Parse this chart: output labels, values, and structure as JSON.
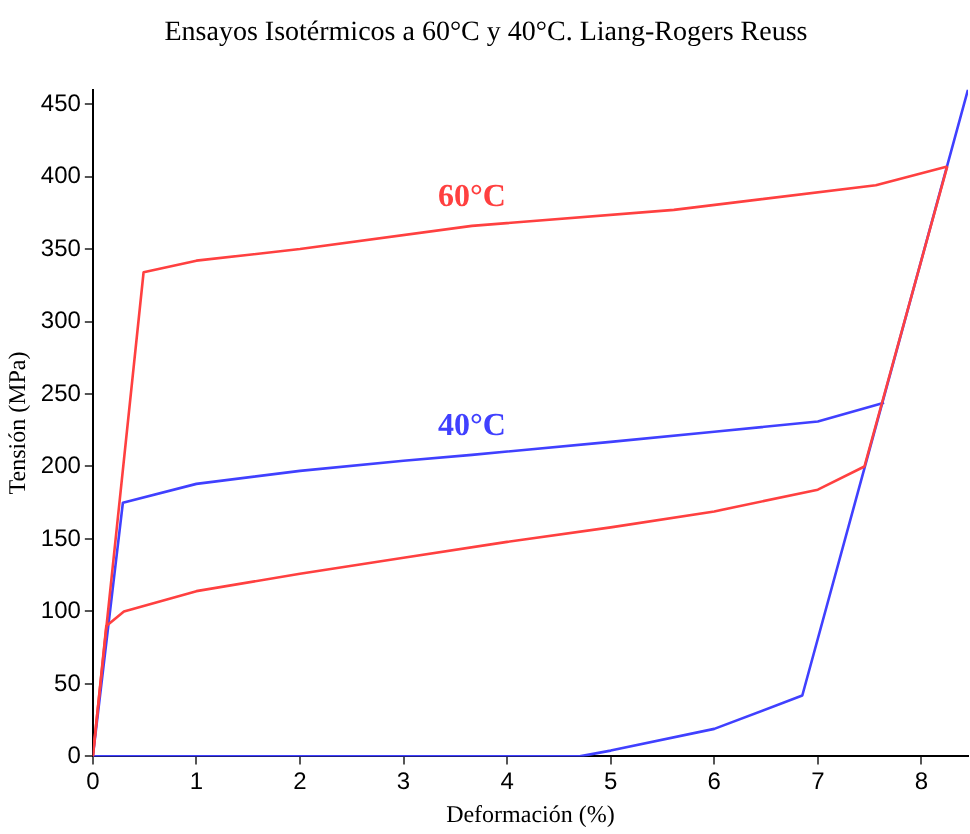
{
  "chart_data": {
    "type": "line",
    "title": "Ensayos Isotérmicos a 60°C y 40°C. Liang-Rogers Reuss",
    "xlabel": "Deformación (%)",
    "ylabel": "Tensión (MPa)",
    "xlim": [
      0,
      8.45
    ],
    "xticks": [
      0,
      1,
      2,
      3,
      4,
      5,
      6,
      7,
      8
    ],
    "ylim": [
      0,
      460
    ],
    "yticks": [
      0,
      50,
      100,
      150,
      200,
      250,
      300,
      350,
      400,
      450
    ],
    "grid": false,
    "legend": false,
    "marker": "none",
    "line_style": "solid",
    "series": [
      {
        "name": "60°C",
        "color": "#ff4040",
        "x": [
          0,
          0.49,
          1,
          2,
          3.66,
          5.61,
          7.56,
          8.25
        ],
        "values": [
          0,
          334,
          342,
          350,
          366,
          377,
          394,
          407
        ]
      },
      {
        "color": "#ff4040",
        "x": [
          0,
          0.13,
          0.3,
          1,
          2,
          3,
          4,
          5,
          6,
          7,
          7.45,
          8.25
        ],
        "values": [
          0,
          90,
          100,
          114,
          126,
          137,
          148,
          158,
          169,
          184,
          200,
          407
        ]
      },
      {
        "name": "40°C",
        "color": "#4040ff",
        "x": [
          0,
          0.29,
          1,
          2,
          3,
          3.66,
          5,
          6,
          7,
          7.64
        ],
        "values": [
          0,
          175,
          188,
          197,
          204,
          208,
          217,
          224,
          231,
          244
        ]
      },
      {
        "color": "#4040ff",
        "x": [
          0,
          4.7,
          5,
          6,
          6.85,
          8.45
        ],
        "values": [
          0,
          0,
          4,
          19,
          42,
          460
        ]
      }
    ]
  }
}
